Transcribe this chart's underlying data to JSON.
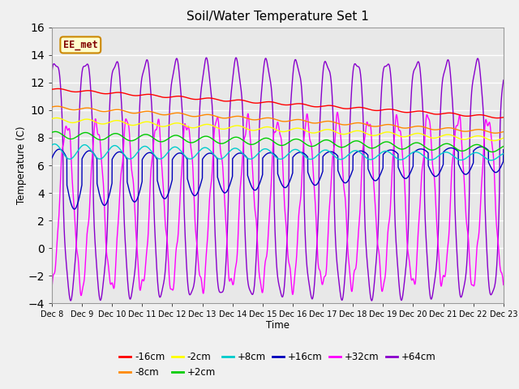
{
  "title": "Soil/Water Temperature Set 1",
  "xlabel": "Time",
  "ylabel": "Temperature (C)",
  "ylim": [
    -4,
    16
  ],
  "xlim": [
    0,
    15
  ],
  "x_tick_labels": [
    "Dec 8",
    "Dec 9",
    "Dec 10",
    "Dec 11",
    "Dec 12",
    "Dec 13",
    "Dec 14",
    "Dec 15",
    "Dec 16",
    "Dec 17",
    "Dec 18",
    "Dec 19",
    "Dec 20",
    "Dec 21",
    "Dec 22",
    "Dec 23"
  ],
  "annotation_label": "EE_met",
  "annotation_box_color": "#ffffcc",
  "annotation_box_edge": "#cc8800",
  "annotation_text_color": "#800000",
  "series": [
    {
      "label": "-16cm",
      "color": "#ff0000"
    },
    {
      "label": "-8cm",
      "color": "#ff8800"
    },
    {
      "label": "-2cm",
      "color": "#ffff00"
    },
    {
      "label": "+2cm",
      "color": "#00cc00"
    },
    {
      "label": "+8cm",
      "color": "#00cccc"
    },
    {
      "label": "+16cm",
      "color": "#0000bb"
    },
    {
      "label": "+32cm",
      "color": "#ff00ff"
    },
    {
      "label": "+64cm",
      "color": "#8800cc"
    }
  ],
  "bg_color": "#e8e8e8",
  "grid_color": "#ffffff",
  "fig_facecolor": "#f0f0f0"
}
